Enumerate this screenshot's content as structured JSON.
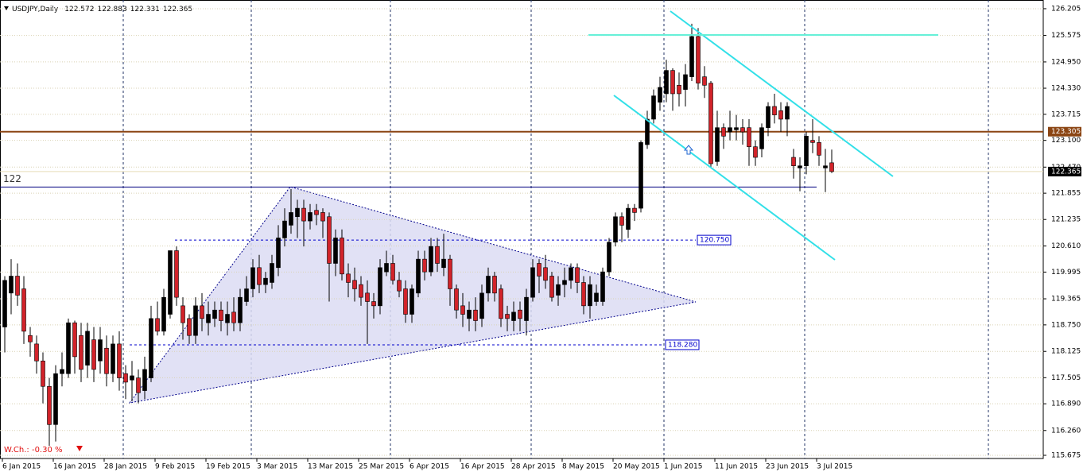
{
  "chart_data": {
    "type": "candlestick",
    "title": "USDJPY,Daily",
    "annotation": "W.Ch.: -0.30 %",
    "categories": [
      "6 Jan 2015",
      null,
      null,
      null,
      null,
      null,
      null,
      null,
      "16 Jan 2015",
      null,
      null,
      null,
      null,
      null,
      null,
      null,
      "28 Jan 2015",
      null,
      null,
      null,
      null,
      null,
      null,
      null,
      "9 Feb 2015",
      null,
      null,
      null,
      null,
      null,
      null,
      null,
      "19 Feb 2015",
      null,
      null,
      null,
      null,
      null,
      null,
      null,
      "3 Mar 2015",
      null,
      null,
      null,
      null,
      null,
      null,
      null,
      "13 Mar 2015",
      null,
      null,
      null,
      null,
      null,
      null,
      null,
      "25 Mar 2015",
      null,
      null,
      null,
      null,
      null,
      null,
      null,
      "6 Apr 2015",
      null,
      null,
      null,
      null,
      null,
      null,
      null,
      "16 Apr 2015",
      null,
      null,
      null,
      null,
      null,
      null,
      null,
      "28 Apr 2015",
      null,
      null,
      null,
      null,
      null,
      null,
      null,
      "8 May 2015",
      null,
      null,
      null,
      null,
      null,
      null,
      null,
      "20 May 2015",
      null,
      null,
      null,
      null,
      null,
      null,
      null,
      "1 Jun 2015",
      null,
      null,
      null,
      null,
      null,
      null,
      null,
      "11 Jun 2015",
      null,
      null,
      null,
      null,
      null,
      null,
      null,
      "23 Jun 2015",
      null,
      null,
      null,
      null,
      null,
      null,
      null,
      "3 Jul 2015",
      null,
      null
    ],
    "open": [
      118.7,
      119.5,
      119.9,
      119.6,
      118.5,
      118.3,
      117.9,
      117.3,
      116.4,
      117.6,
      117.6,
      118.8,
      118.5,
      117.8,
      118.4,
      117.9,
      118.2,
      117.6,
      118.3,
      117.6,
      117.45,
      117.5,
      117.2,
      117.5,
      118.9,
      118.6,
      119.0,
      120.5,
      119.2,
      118.9,
      118.5,
      119.2,
      118.8,
      118.9,
      119.1,
      118.8,
      119.05,
      118.8,
      119.3,
      119.6,
      120.1,
      119.7,
      119.75,
      120.1,
      120.8,
      121.1,
      121.3,
      121.5,
      121.2,
      121.45,
      121.4,
      121.3,
      120.2,
      120.8,
      119.95,
      119.8,
      119.7,
      119.5,
      119.3,
      119.2,
      120.0,
      120.2,
      119.8,
      119.6,
      119.0,
      119.5,
      120.3,
      120.0,
      120.6,
      120.1,
      120.3,
      119.6,
      119.2,
      118.9,
      119.1,
      118.9,
      119.5,
      119.9,
      119.6,
      119.0,
      118.85,
      119.1,
      118.85,
      119.4,
      120.2,
      120.1,
      119.9,
      119.45,
      119.7,
      119.8,
      120.1,
      119.75,
      119.2,
      119.3,
      119.3,
      120.0,
      120.7,
      121.3,
      121.0,
      121.5,
      121.5,
      123.0,
      123.6,
      124.0,
      124.2,
      124.75,
      124.4,
      124.3,
      124.6,
      125.55,
      124.6,
      124.45,
      122.6,
      123.4,
      123.3,
      123.35,
      123.4,
      123.4,
      122.95,
      122.9,
      123.4,
      123.9,
      123.8,
      123.6,
      122.7,
      122.45,
      122.5,
      123.1,
      123.05,
      122.45,
      122.572
    ],
    "high": [
      119.9,
      120.3,
      120.2,
      119.9,
      118.7,
      118.5,
      118.1,
      117.5,
      117.8,
      118.1,
      118.9,
      118.85,
      118.8,
      118.8,
      118.7,
      118.7,
      118.5,
      118.5,
      118.6,
      117.8,
      117.9,
      117.7,
      118.0,
      119.2,
      119.3,
      119.6,
      120.5,
      120.6,
      119.4,
      119.0,
      119.4,
      119.5,
      119.3,
      119.3,
      119.3,
      119.3,
      119.4,
      119.6,
      119.9,
      120.3,
      120.4,
      120.0,
      120.4,
      121.1,
      121.5,
      121.95,
      121.7,
      121.7,
      121.6,
      121.6,
      121.5,
      121.4,
      121.0,
      121.0,
      120.2,
      120.1,
      119.9,
      119.8,
      119.5,
      120.3,
      120.5,
      120.4,
      120.0,
      119.8,
      119.7,
      120.5,
      120.5,
      120.8,
      120.8,
      120.9,
      120.4,
      119.7,
      119.5,
      119.3,
      119.4,
      119.7,
      120.1,
      120.0,
      119.7,
      119.2,
      119.3,
      119.3,
      119.6,
      120.3,
      120.3,
      120.4,
      120.0,
      119.9,
      120.1,
      120.2,
      120.2,
      119.9,
      119.9,
      119.7,
      120.1,
      120.8,
      121.4,
      121.4,
      121.6,
      121.6,
      123.1,
      123.8,
      124.3,
      124.6,
      125.0,
      124.8,
      124.7,
      124.9,
      125.85,
      125.75,
      124.85,
      124.5,
      123.8,
      123.5,
      123.8,
      123.7,
      123.6,
      123.6,
      123.1,
      123.5,
      124.0,
      124.2,
      124.0,
      124.0,
      122.9,
      122.7,
      123.3,
      123.6,
      123.2,
      122.9,
      122.883
    ],
    "low": [
      118.1,
      119.0,
      119.2,
      118.3,
      118.0,
      117.6,
      116.9,
      115.9,
      116.0,
      117.3,
      117.5,
      117.6,
      117.4,
      117.5,
      117.4,
      117.6,
      117.3,
      117.4,
      117.2,
      117.0,
      116.95,
      116.9,
      117.0,
      117.4,
      118.5,
      118.5,
      118.9,
      119.2,
      118.4,
      118.3,
      118.3,
      118.6,
      118.5,
      118.7,
      118.6,
      118.5,
      118.6,
      118.6,
      119.2,
      119.4,
      119.5,
      119.5,
      119.6,
      119.9,
      120.6,
      120.9,
      120.8,
      120.6,
      121.0,
      121.1,
      120.8,
      119.3,
      119.9,
      119.8,
      119.4,
      119.3,
      119.2,
      118.3,
      118.9,
      119.0,
      119.9,
      119.7,
      119.4,
      118.8,
      118.8,
      119.4,
      119.8,
      119.9,
      120.0,
      119.9,
      119.2,
      118.9,
      118.7,
      118.6,
      118.6,
      118.7,
      119.3,
      119.3,
      118.7,
      118.6,
      118.6,
      118.6,
      118.5,
      119.3,
      119.5,
      119.6,
      119.3,
      119.2,
      119.4,
      119.6,
      119.5,
      119.0,
      118.9,
      119.2,
      119.2,
      119.9,
      120.6,
      120.7,
      120.8,
      121.2,
      121.4,
      122.9,
      123.5,
      123.8,
      124.0,
      123.8,
      123.9,
      123.9,
      124.5,
      124.3,
      124.1,
      122.45,
      122.5,
      122.9,
      123.1,
      123.1,
      123.0,
      122.5,
      122.5,
      122.7,
      123.2,
      123.5,
      123.3,
      123.2,
      122.2,
      121.9,
      122.3,
      122.8,
      122.5,
      121.88,
      122.331
    ],
    "close": [
      119.8,
      119.9,
      119.45,
      118.6,
      118.35,
      117.9,
      117.3,
      116.4,
      117.6,
      117.7,
      118.8,
      118.0,
      117.7,
      118.6,
      117.7,
      118.4,
      117.6,
      118.3,
      117.5,
      117.4,
      117.55,
      117.15,
      117.7,
      118.9,
      118.6,
      119.4,
      120.5,
      119.4,
      118.8,
      118.5,
      119.2,
      118.9,
      119.0,
      119.1,
      118.85,
      119.0,
      118.8,
      119.4,
      119.6,
      120.1,
      119.7,
      119.85,
      120.2,
      120.8,
      121.2,
      121.4,
      121.5,
      121.2,
      121.4,
      121.35,
      121.2,
      120.2,
      120.8,
      119.95,
      119.75,
      119.6,
      119.4,
      119.3,
      119.2,
      120.1,
      120.2,
      119.8,
      119.55,
      119.0,
      119.6,
      120.3,
      120.0,
      120.6,
      120.2,
      120.3,
      119.6,
      119.1,
      119.0,
      119.1,
      118.85,
      119.5,
      119.9,
      119.5,
      118.9,
      118.9,
      119.05,
      118.9,
      119.4,
      120.1,
      119.9,
      119.8,
      119.4,
      119.7,
      119.8,
      120.1,
      119.75,
      119.2,
      119.7,
      119.5,
      120.0,
      120.7,
      121.3,
      121.1,
      121.5,
      121.4,
      123.05,
      123.6,
      124.15,
      124.35,
      124.75,
      124.2,
      124.2,
      124.65,
      125.55,
      124.45,
      124.4,
      122.55,
      123.4,
      123.2,
      123.4,
      123.4,
      123.3,
      122.95,
      122.7,
      123.4,
      123.9,
      123.7,
      123.6,
      123.9,
      122.5,
      122.5,
      123.2,
      123.05,
      122.75,
      122.5,
      122.365
    ],
    "up_color": "#000000",
    "down_color": "#d2232a",
    "ylim": [
      115.6,
      126.41
    ],
    "yticks": [
      126.205,
      125.575,
      {
        "value": 124.95,
        "label": "124.950"
      },
      {
        "value": 124.33,
        "label": "124.330"
      },
      123.715,
      {
        "value": 123.1,
        "label": "123.100"
      },
      {
        "value": 122.47,
        "label": "122.470"
      },
      121.855,
      121.235,
      {
        "value": 120.61,
        "label": "120.610"
      },
      119.995,
      119.365,
      {
        "value": 118.75,
        "label": "118.750"
      },
      118.125,
      117.505,
      {
        "value": 116.89,
        "label": "116.890"
      },
      {
        "value": 116.26,
        "label": "116.260"
      },
      115.675
    ],
    "grid": true,
    "levels": [
      {
        "value": 123.305,
        "color": "#8b4513"
      },
      {
        "value": 122,
        "color": "#000080"
      },
      {
        "value": 120.75,
        "label": "120.750",
        "color": "#0000cc"
      },
      {
        "value": 118.28,
        "label": "118.280",
        "color": "#0000cc"
      }
    ]
  }
}
